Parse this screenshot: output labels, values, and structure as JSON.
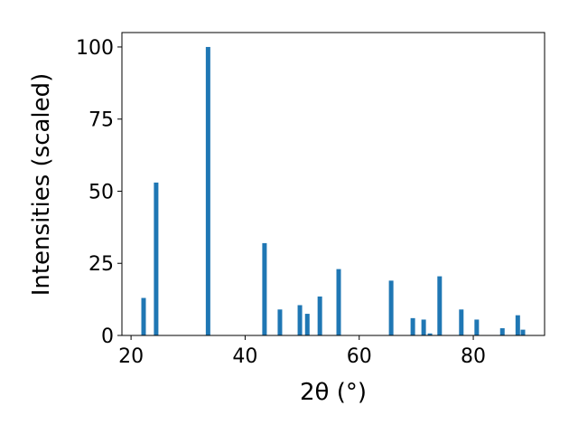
{
  "chart_data": {
    "type": "bar",
    "x": [
      22.2,
      24.4,
      33.5,
      43.4,
      46.1,
      49.6,
      50.9,
      53.1,
      56.4,
      65.6,
      69.4,
      71.3,
      72.4,
      74.1,
      77.9,
      80.6,
      85.1,
      87.8,
      88.7
    ],
    "values": [
      13,
      53,
      100,
      32,
      9,
      10.5,
      7.5,
      13.5,
      23,
      19,
      6,
      5.5,
      0.7,
      20.5,
      9,
      5.5,
      2.5,
      7,
      2
    ],
    "color": "#1f77b4",
    "xlabel": "2θ (°)",
    "ylabel": "Intensities (scaled)",
    "xlim": [
      18.4,
      92.5
    ],
    "ylim": [
      0,
      105
    ],
    "xticks": [
      20,
      40,
      60,
      80
    ],
    "yticks": [
      0,
      25,
      50,
      75,
      100
    ]
  }
}
